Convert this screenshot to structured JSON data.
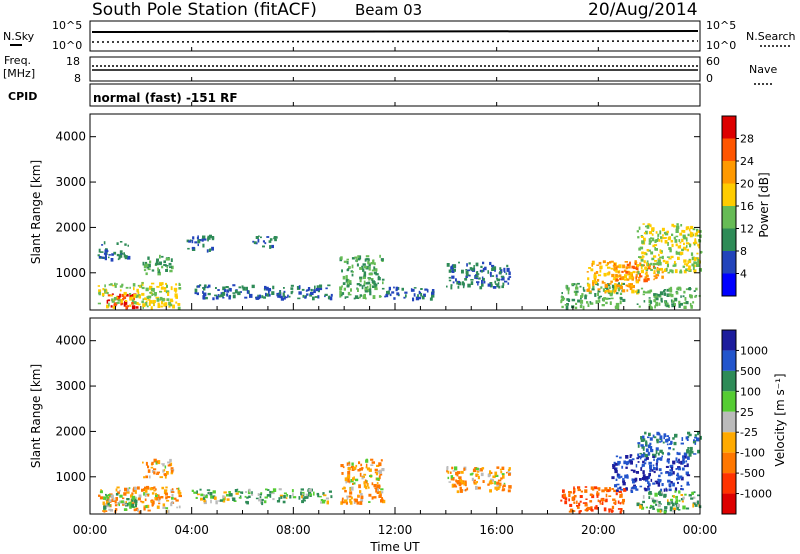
{
  "header": {
    "title": "South Pole Station (fitACF)",
    "beam": "Beam 03",
    "date": "20/Aug/2014"
  },
  "status_panels": {
    "nsky_label": "N.Sky",
    "nsearch_label": "N.Search",
    "nsky_ticks": [
      "10^5",
      "10^0"
    ],
    "nsearch_ticks": [
      "10^5",
      "10^0"
    ],
    "freq_label_line1": "Freq.",
    "freq_label_line2": "[MHz]",
    "freq_ticks": [
      "18",
      "8"
    ],
    "nave_label": "Nave",
    "nave_ticks": [
      "60",
      "0"
    ],
    "cpid_label": "CPID",
    "cpid_value": "normal (fast) -151 RF"
  },
  "power_panel": {
    "ylabel": "Slant Range [km]",
    "ytick_labels": [
      "1000",
      "2000",
      "3000",
      "4000"
    ],
    "colorbar_label": "Power [dB]",
    "colorbar_ticks": [
      "4",
      "8",
      "12",
      "16",
      "20",
      "24",
      "28"
    ]
  },
  "velocity_panel": {
    "ylabel": "Slant Range [km]",
    "ytick_labels": [
      "1000",
      "2000",
      "3000",
      "4000"
    ],
    "colorbar_label": "Velocity [m s⁻¹]",
    "colorbar_ticks": [
      "1000",
      "500",
      "100",
      "25",
      "-25",
      "-100",
      "-500",
      "-1000"
    ]
  },
  "xaxis": {
    "xlabel": "Time UT",
    "tick_labels": [
      "00:00",
      "04:00",
      "08:00",
      "12:00",
      "16:00",
      "20:00",
      "00:00"
    ]
  },
  "colors": {
    "power_scale": [
      "#0000ff",
      "#2244bb",
      "#2e8b57",
      "#66bb55",
      "#ffcc00",
      "#ff9900",
      "#ff5500",
      "#dd0000"
    ],
    "velocity_scale": [
      "#1c1c9c",
      "#2255cc",
      "#2e8b57",
      "#55cc33",
      "#bbbbbb",
      "#ffaa00",
      "#ff7700",
      "#ff3300",
      "#dd0000"
    ]
  },
  "chart_data": [
    {
      "type": "heatmap",
      "title": "",
      "xlabel": "Time UT",
      "ylabel": "Slant Range [km]",
      "xlim": [
        0,
        24
      ],
      "ylim": [
        180,
        4500
      ],
      "colorbar": {
        "label": "Power [dB]",
        "range": [
          0,
          32
        ],
        "ticks": [
          4,
          8,
          12,
          16,
          20,
          24,
          28
        ]
      },
      "regions": [
        {
          "t": [
            0.5,
            1.8
          ],
          "r": [
            250,
            550
          ],
          "v": 28
        },
        {
          "t": [
            0.3,
            3.5
          ],
          "r": [
            250,
            800
          ],
          "v": 16
        },
        {
          "t": [
            0.3,
            1.5
          ],
          "r": [
            1300,
            1700
          ],
          "v": 8
        },
        {
          "t": [
            2.0,
            3.2
          ],
          "r": [
            1000,
            1400
          ],
          "v": 12
        },
        {
          "t": [
            3.8,
            4.8
          ],
          "r": [
            1500,
            1850
          ],
          "v": 8
        },
        {
          "t": [
            4.0,
            9.5
          ],
          "r": [
            450,
            750
          ],
          "v": 8
        },
        {
          "t": [
            6.3,
            7.3
          ],
          "r": [
            1600,
            1850
          ],
          "v": 8
        },
        {
          "t": [
            9.8,
            11.5
          ],
          "r": [
            450,
            1400
          ],
          "v": 12
        },
        {
          "t": [
            11.5,
            13.5
          ],
          "r": [
            450,
            700
          ],
          "v": 8
        },
        {
          "t": [
            14.0,
            16.5
          ],
          "r": [
            700,
            1250
          ],
          "v": 8
        },
        {
          "t": [
            18.5,
            21.0
          ],
          "r": [
            250,
            800
          ],
          "v": 12
        },
        {
          "t": [
            19.5,
            21.5
          ],
          "r": [
            600,
            1300
          ],
          "v": 20
        },
        {
          "t": [
            20.5,
            22.5
          ],
          "r": [
            850,
            1250
          ],
          "v": 24
        },
        {
          "t": [
            21.5,
            24.0
          ],
          "r": [
            1000,
            2100
          ],
          "v": 16
        },
        {
          "t": [
            21.5,
            24.0
          ],
          "r": [
            250,
            700
          ],
          "v": 12
        }
      ]
    },
    {
      "type": "heatmap",
      "title": "",
      "xlabel": "Time UT",
      "ylabel": "Slant Range [km]",
      "xlim": [
        0,
        24
      ],
      "ylim": [
        180,
        4500
      ],
      "colorbar": {
        "label": "Velocity [m s⁻¹]",
        "ticks": [
          1000,
          500,
          100,
          25,
          -25,
          -100,
          -500,
          -1000
        ]
      },
      "regions": [
        {
          "t": [
            0.3,
            3.5
          ],
          "r": [
            250,
            800
          ],
          "v": -100
        },
        {
          "t": [
            0.5,
            1.8
          ],
          "r": [
            350,
            650
          ],
          "v": 100
        },
        {
          "t": [
            2.0,
            3.2
          ],
          "r": [
            1000,
            1400
          ],
          "v": -100
        },
        {
          "t": [
            4.0,
            9.5
          ],
          "r": [
            450,
            750
          ],
          "v": 100
        },
        {
          "t": [
            9.8,
            11.5
          ],
          "r": [
            450,
            1400
          ],
          "v": -100
        },
        {
          "t": [
            14.0,
            16.5
          ],
          "r": [
            700,
            1250
          ],
          "v": -100
        },
        {
          "t": [
            18.5,
            21.0
          ],
          "r": [
            250,
            800
          ],
          "v": -500
        },
        {
          "t": [
            20.5,
            23.5
          ],
          "r": [
            700,
            1500
          ],
          "v": 1000
        },
        {
          "t": [
            21.5,
            24.0
          ],
          "r": [
            1500,
            2000
          ],
          "v": 500
        },
        {
          "t": [
            21.5,
            24.0
          ],
          "r": [
            250,
            700
          ],
          "v": 100
        }
      ]
    }
  ]
}
